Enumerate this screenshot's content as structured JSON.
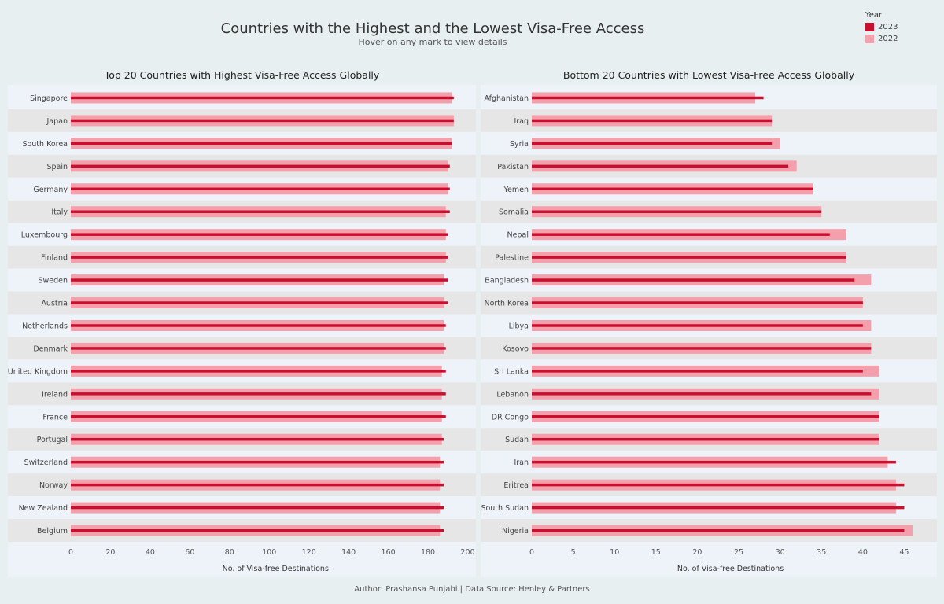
{
  "header": {
    "title": "Countries with the Highest and the Lowest Visa-Free Access",
    "subtitle": "Hover on any mark to view details"
  },
  "legend": {
    "title": "Year",
    "items": [
      {
        "label": "2023",
        "color": "#c8102e"
      },
      {
        "label": "2022",
        "color": "#f4a0ac"
      }
    ]
  },
  "footer": "Author: Prashansa Punjabi | Data Source: Henley & Partners",
  "colors": {
    "bar_2023": "#c8102e",
    "bar_2022": "#f4a0ac",
    "row_light": "#eef2f9",
    "row_dark": "#e6e6e6"
  },
  "chart_data": [
    {
      "type": "bar",
      "title": "Top 20 Countries with Highest Visa-Free Access Globally",
      "xlabel": "No. of Visa-free Destinations",
      "ylabel": "",
      "xlim": [
        0,
        200
      ],
      "ticks": [
        0,
        20,
        40,
        60,
        80,
        100,
        120,
        140,
        160,
        180,
        200
      ],
      "categories": [
        "Singapore",
        "Japan",
        "South Korea",
        "Spain",
        "Germany",
        "Italy",
        "Luxembourg",
        "Finland",
        "Sweden",
        "Austria",
        "Netherlands",
        "Denmark",
        "United Kingdom",
        "Ireland",
        "France",
        "Portugal",
        "Switzerland",
        "Norway",
        "New Zealand",
        "Belgium"
      ],
      "series": [
        {
          "name": "2022",
          "values": [
            192,
            193,
            192,
            190,
            190,
            189,
            189,
            189,
            188,
            188,
            188,
            188,
            187,
            187,
            187,
            187,
            186,
            186,
            186,
            186
          ]
        },
        {
          "name": "2023",
          "values": [
            193,
            193,
            192,
            191,
            191,
            191,
            190,
            190,
            190,
            190,
            189,
            189,
            189,
            189,
            189,
            188,
            188,
            188,
            188,
            188
          ]
        }
      ]
    },
    {
      "type": "bar",
      "title": "Bottom 20 Countries with Lowest Visa-Free Access Globally",
      "xlabel": "No. of Visa-free Destinations",
      "ylabel": "",
      "xlim": [
        0,
        48
      ],
      "ticks": [
        0,
        5,
        10,
        15,
        20,
        25,
        30,
        35,
        40,
        45
      ],
      "categories": [
        "Afghanistan",
        "Iraq",
        "Syria",
        "Pakistan",
        "Yemen",
        "Somalia",
        "Nepal",
        "Palestine",
        "Bangladesh",
        "North Korea",
        "Libya",
        "Kosovo",
        "Sri Lanka",
        "Lebanon",
        "DR Congo",
        "Sudan",
        "Iran",
        "Eritrea",
        "South Sudan",
        "Nigeria"
      ],
      "series": [
        {
          "name": "2022",
          "values": [
            27,
            29,
            30,
            32,
            34,
            35,
            38,
            38,
            41,
            40,
            41,
            41,
            42,
            42,
            42,
            42,
            43,
            44,
            44,
            46
          ]
        },
        {
          "name": "2023",
          "values": [
            28,
            29,
            29,
            31,
            34,
            35,
            36,
            38,
            39,
            40,
            40,
            41,
            40,
            41,
            42,
            42,
            44,
            45,
            45,
            45
          ]
        }
      ]
    }
  ]
}
